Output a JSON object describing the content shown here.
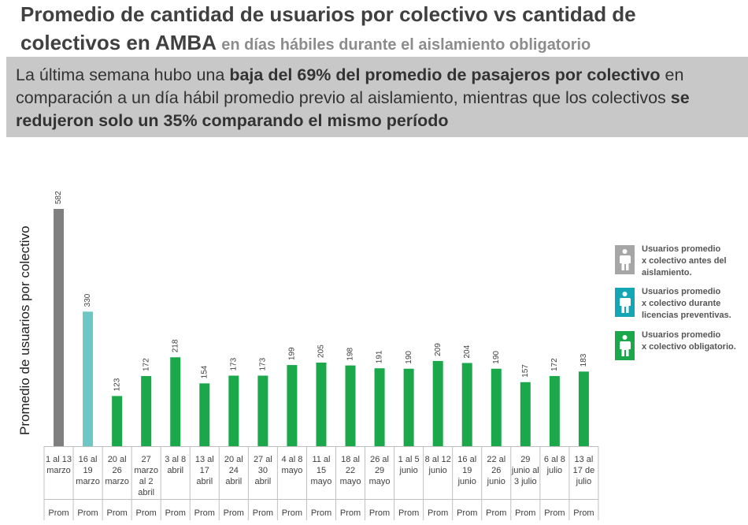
{
  "header": {
    "title_main": "Promedio de cantidad de usuarios por colectivo vs cantidad de colectivos en AMBA",
    "title_sub": "en días hábiles durante el aislamiento obligatorio"
  },
  "banner": {
    "p1": "La última semana hubo una ",
    "b1": "baja del 69% del promedio de pasajeros por colectivo",
    "p2": " en comparación a un día hábil promedio previo al aislamiento, mientras que los colectivos ",
    "b2": "se redujeron solo un 35% comparando el mismo período"
  },
  "chart_data": {
    "type": "bar",
    "ylabel": "Promedio de usuarios por colectivo",
    "categories": [
      [
        "1 al 13",
        "marzo"
      ],
      [
        "16 al",
        "19",
        "marzo"
      ],
      [
        "20 al",
        "26",
        "marzo"
      ],
      [
        "27",
        "marzo",
        "al 2",
        "abril"
      ],
      [
        "3 al 8",
        "abril"
      ],
      [
        "13 al",
        "17",
        "abril"
      ],
      [
        "20 al",
        "24",
        "abril"
      ],
      [
        "27 al",
        "30",
        "abril"
      ],
      [
        "4 al 8",
        "mayo"
      ],
      [
        "11 al",
        "15",
        "mayo"
      ],
      [
        "18 al",
        "22",
        "mayo"
      ],
      [
        "26 al",
        "29",
        "mayo"
      ],
      [
        "1 al 5",
        "junio"
      ],
      [
        "8 al 12",
        "junio"
      ],
      [
        "16 al",
        "19",
        "junio"
      ],
      [
        "22 al",
        "26",
        "junio"
      ],
      [
        "29",
        "junio al",
        "3 julio"
      ],
      [
        "6 al 8",
        "julio"
      ],
      [
        "13 al",
        "17 de",
        "julio"
      ]
    ],
    "row_label": "Prom",
    "values": [
      582,
      330,
      123,
      172,
      218,
      154,
      173,
      173,
      199,
      205,
      198,
      191,
      190,
      209,
      204,
      190,
      157,
      172,
      183
    ],
    "series_index": [
      0,
      1,
      2,
      2,
      2,
      2,
      2,
      2,
      2,
      2,
      2,
      2,
      2,
      2,
      2,
      2,
      2,
      2,
      2
    ],
    "series": [
      {
        "name": "Usuarios promedio x colectivo antes del aislamiento.",
        "color": "#7f7f7f"
      },
      {
        "name": "Usuarios promedio x colectivo durante licencias preventivas.",
        "color": "#6cc7c5"
      },
      {
        "name": "Usuarios promedio x colectivo obligatorio.",
        "color": "#1aa84a"
      }
    ],
    "ylim": [
      0,
      582
    ]
  },
  "legend": [
    {
      "lines": [
        "Usuarios promedio",
        "x colectivo antes del",
        "aislamiento."
      ],
      "color": "#a6a6a6"
    },
    {
      "lines": [
        "Usuarios promedio",
        "x colectivo durante",
        "licencias preventivas."
      ],
      "color": "#14a6b4"
    },
    {
      "lines": [
        "Usuarios promedio",
        "x colectivo obligatorio."
      ],
      "color": "#1aa84a"
    }
  ]
}
